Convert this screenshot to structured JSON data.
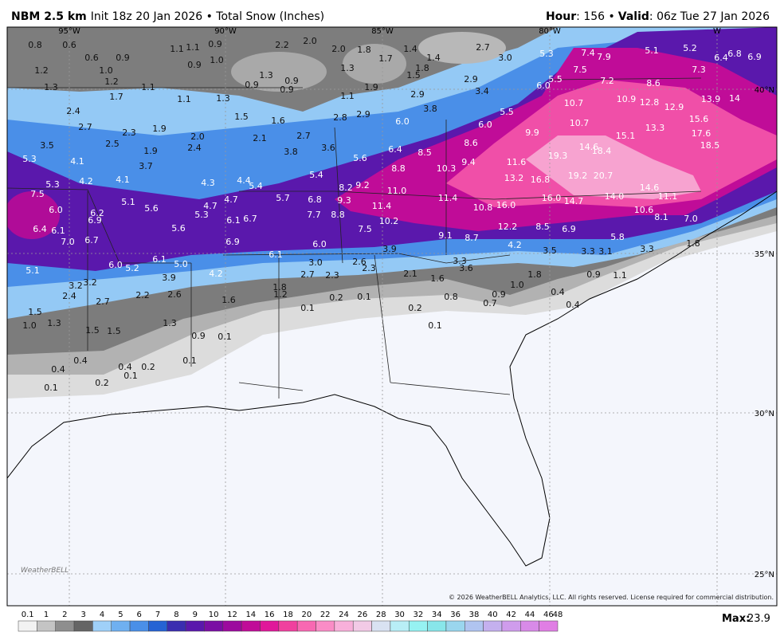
{
  "header": {
    "model": "NBM 2.5 km",
    "init": "Init 18z 20 Jan 2026 • Total Snow (Inches)",
    "hour_label": "Hour",
    "hour": ": 156 •",
    "valid_label": "Valid",
    "valid": ": 06z Tue 27 Jan 2026"
  },
  "map": {
    "latitudes": [
      "40°N",
      "35°N",
      "30°N",
      "25°N"
    ],
    "longitudes": [
      "95°W",
      "90°W",
      "85°W",
      "80°W",
      "W"
    ],
    "labels": [
      "0.8",
      "0.6",
      "0.6",
      "0.9",
      "1.1",
      "1.1",
      "0.9",
      "2.2",
      "2.0",
      "2.0",
      "1.8",
      "1.7",
      "1.4",
      "1.4",
      "2.7",
      "3.0",
      "5.3",
      "7.4",
      "7.9",
      "5.1",
      "5.2",
      "6.4",
      "6.8",
      "6.9",
      "7.3",
      "1.2",
      "1.0",
      "1.0",
      "0.9",
      "1.3",
      "1.5",
      "1.8",
      "7.5",
      "7.2",
      "8.6",
      "1.3",
      "1.2",
      "1.1",
      "0.9",
      "1.3",
      "0.9",
      "0.9",
      "1.9",
      "2.9",
      "3.4",
      "2.9",
      "6.0",
      "5.5",
      "1.7",
      "1.1",
      "1.3",
      "1.1",
      "3.8",
      "10.7",
      "10.9",
      "12.8",
      "12.9",
      "13.9",
      "14",
      "2.4",
      "1.5",
      "1.6",
      "2.8",
      "2.9",
      "5.5",
      "6.0",
      "10.7",
      "15.6",
      "2.7",
      "2.3",
      "1.9",
      "6.0",
      "9.9",
      "15.1",
      "13.3",
      "17.6",
      "3.5",
      "2.5",
      "2.0",
      "2.1",
      "2.7",
      "8.6",
      "14.6",
      "18.4",
      "19.3",
      "18.5",
      "5.3",
      "4.1",
      "2.4",
      "1.9",
      "3.8",
      "3.6",
      "6.4",
      "8.5",
      "11.6",
      "3.7",
      "5.6",
      "8.8",
      "10.3",
      "9.4",
      "13.2",
      "16.8",
      "19.2",
      "20.7",
      "5.3",
      "4.2",
      "4.1",
      "4.3",
      "4.4",
      "5.4",
      "5.4",
      "8.2",
      "9.2",
      "11.0",
      "14.6",
      "11.1",
      "7.5",
      "5.1",
      "4.7",
      "5.7",
      "6.8",
      "9.3",
      "11.4",
      "16.0",
      "14.7",
      "14.0",
      "6.0",
      "5.6",
      "4.7",
      "5.3",
      "6.1",
      "6.7",
      "7.7",
      "8.8",
      "11.4",
      "10.8",
      "16.0",
      "10.6",
      "8.1",
      "7.0",
      "6.2",
      "6.9",
      "10.2",
      "12.2",
      "8.5",
      "6.9",
      "6.4",
      "6.1",
      "5.6",
      "7.5",
      "9.1",
      "8.7",
      "5.8",
      "7.0",
      "6.7",
      "6.9",
      "6.0",
      "4.2",
      "1.8",
      "6.1",
      "3.9",
      "3.5",
      "3.3",
      "3.1",
      "3.3",
      "5.1",
      "6.0",
      "5.2",
      "6.1",
      "5.0",
      "3.0",
      "2.6",
      "2.3",
      "3.3",
      "3.6",
      "4.2",
      "3.9",
      "2.7",
      "2.3",
      "2.1",
      "1.6",
      "1.8",
      "0.9",
      "1.1",
      "3.2",
      "3.2",
      "1.8",
      "1.2",
      "1.0",
      "2.4",
      "2.7",
      "2.2",
      "2.6",
      "1.6",
      "0.2",
      "0.1",
      "0.8",
      "0.9",
      "0.7",
      "0.4",
      "0.4",
      "1.5",
      "0.1",
      "0.2",
      "1.0",
      "1.3",
      "1.5",
      "1.5",
      "1.3",
      "0.1",
      "0.9",
      "0.1",
      "0.1",
      "0.4",
      "0.4",
      "0.2",
      "0.4",
      "0.1",
      "0.2",
      "0.1"
    ],
    "logo": "WeatherBELL",
    "copyright": "© 2026 WeatherBELL Analytics, LLC. All rights reserved. License required for commercial distribution."
  },
  "colorbar": {
    "bins": [
      0.1,
      1,
      2,
      3,
      4,
      5,
      6,
      7,
      8,
      9,
      10,
      12,
      14,
      16,
      18,
      20,
      22,
      24,
      26,
      28,
      30,
      32,
      34,
      36,
      38,
      40,
      42,
      44,
      46,
      48
    ],
    "colors": [
      "#f2f2f2",
      "#c4c4c4",
      "#8e8e8e",
      "#656565",
      "#9fd0f8",
      "#6fb0f0",
      "#4a8fe8",
      "#2563d4",
      "#3a2db0",
      "#5a18ac",
      "#7a0ea4",
      "#9c0a9e",
      "#c00c98",
      "#e0189a",
      "#f0409e",
      "#f868b2",
      "#fa8cc6",
      "#f8b0da",
      "#f2cae6",
      "#d9e2f2",
      "#b8eef6",
      "#96f2f2",
      "#88e6ea",
      "#9ad6ee",
      "#b0c4f0",
      "#c4b0ee",
      "#cf9cec",
      "#d88ae8",
      "#e07ee4"
    ]
  },
  "max": {
    "label": "Max:",
    "value": 23.9
  }
}
